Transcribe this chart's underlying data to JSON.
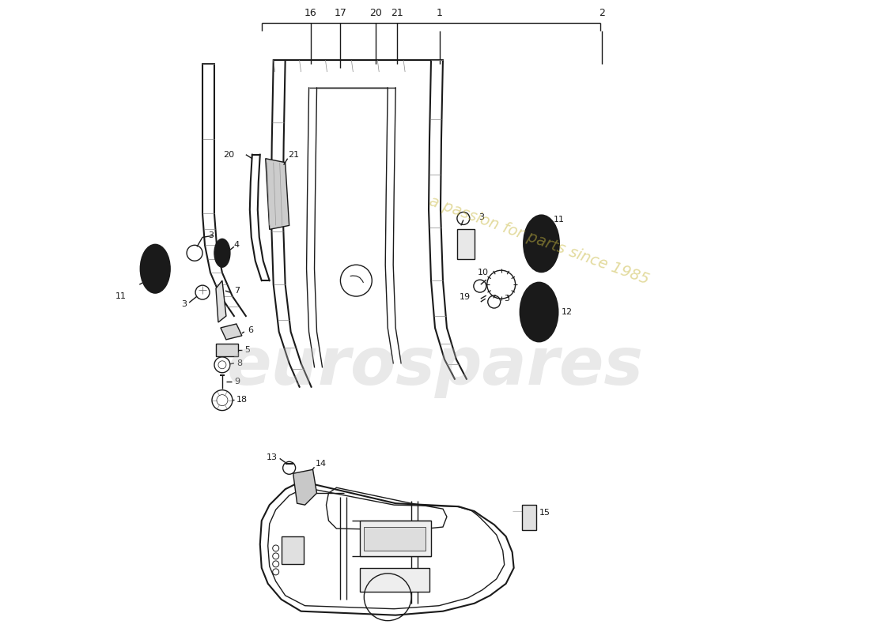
{
  "background_color": "#ffffff",
  "line_color": "#1a1a1a",
  "watermark_text1": "eurospares",
  "watermark_text2": "a passion for parts since 1985",
  "figsize": [
    11.0,
    8.0
  ],
  "dpi": 100
}
